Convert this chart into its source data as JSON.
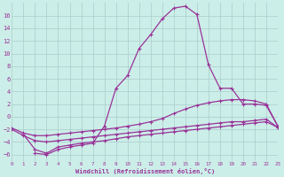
{
  "xlabel": "Windchill (Refroidissement éolien,°C)",
  "xlim": [
    0,
    23
  ],
  "ylim": [
    -7,
    18
  ],
  "xticks": [
    0,
    1,
    2,
    3,
    4,
    5,
    6,
    7,
    8,
    9,
    10,
    11,
    12,
    13,
    14,
    15,
    16,
    17,
    18,
    19,
    20,
    21,
    22,
    23
  ],
  "yticks": [
    -6,
    -4,
    -2,
    0,
    2,
    4,
    6,
    8,
    10,
    12,
    14,
    16
  ],
  "bg_color": "#cceee8",
  "grid_color": "#aacccc",
  "line_color": "#993399",
  "line1_x": [
    0,
    1,
    2,
    3,
    4,
    5,
    6,
    7,
    8,
    9,
    10,
    11,
    12,
    13,
    14,
    15,
    16,
    17,
    18,
    19,
    20,
    21,
    22,
    23
  ],
  "line1_y": [
    -1.8,
    -2.6,
    -3.0,
    -3.0,
    -2.8,
    -2.6,
    -2.4,
    -2.2,
    -2.0,
    -1.8,
    -1.5,
    -1.2,
    -0.8,
    -0.3,
    0.5,
    1.2,
    1.8,
    2.2,
    2.5,
    2.7,
    2.7,
    2.5,
    2.0,
    -1.5
  ],
  "line2_x": [
    0,
    1,
    2,
    3,
    4,
    5,
    6,
    7,
    8,
    9,
    10,
    11,
    12,
    13,
    14,
    15,
    16,
    17,
    18,
    19,
    20,
    21,
    22,
    23
  ],
  "line2_y": [
    -2.0,
    -3.0,
    -3.8,
    -4.0,
    -3.8,
    -3.6,
    -3.4,
    -3.2,
    -3.0,
    -2.8,
    -2.6,
    -2.4,
    -2.2,
    -2.0,
    -1.8,
    -1.6,
    -1.4,
    -1.2,
    -1.0,
    -0.8,
    -0.8,
    -0.6,
    -0.4,
    -1.7
  ],
  "line3_x": [
    1,
    2,
    3,
    4,
    5,
    6,
    7,
    8,
    9,
    10,
    11,
    12,
    13,
    14,
    15,
    16,
    17,
    18,
    19,
    20,
    21,
    22,
    23
  ],
  "line3_y": [
    -2.8,
    -5.2,
    -5.8,
    -4.8,
    -4.5,
    -4.2,
    -4.0,
    -3.8,
    -3.5,
    -3.2,
    -3.0,
    -2.8,
    -2.6,
    -2.4,
    -2.2,
    -2.0,
    -1.8,
    -1.6,
    -1.4,
    -1.2,
    -1.0,
    -0.8,
    -1.7
  ],
  "line4_x": [
    2,
    3,
    4,
    5,
    6,
    7,
    8,
    9,
    10,
    11,
    12,
    13,
    14,
    15,
    16,
    17,
    18,
    19,
    20,
    21,
    22,
    23
  ],
  "line4_y": [
    -5.8,
    -6.0,
    -5.2,
    -4.8,
    -4.5,
    -4.2,
    -1.5,
    4.5,
    6.5,
    10.8,
    13.0,
    15.5,
    17.2,
    17.5,
    16.2,
    8.2,
    4.5,
    4.5,
    2.0,
    2.0,
    1.8,
    -1.5
  ]
}
